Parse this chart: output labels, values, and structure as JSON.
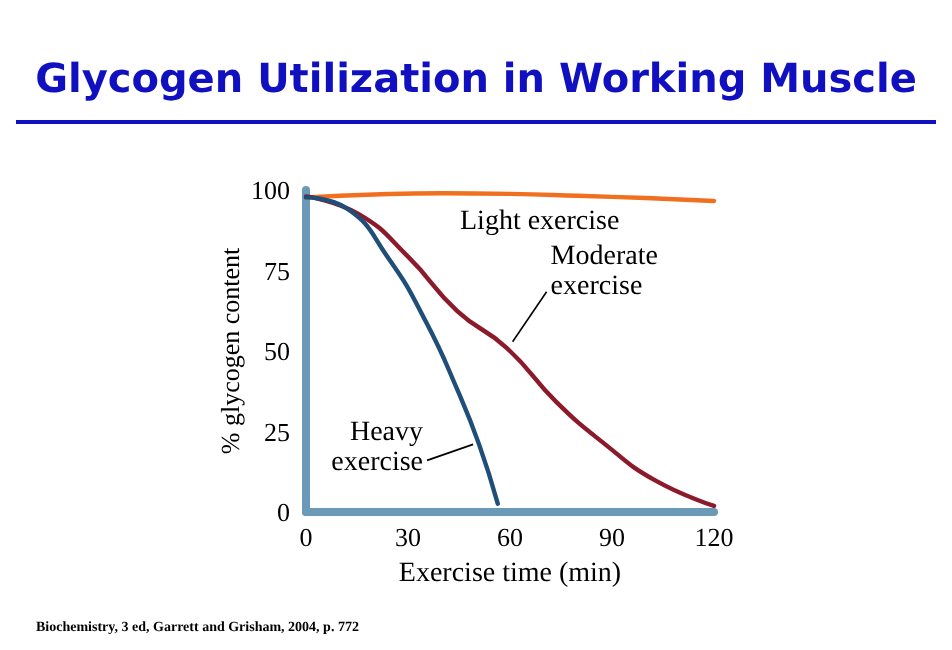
{
  "chart_data": {
    "type": "line",
    "title": "Glycogen Utilization in Working Muscle",
    "xlabel": "Exercise time (min)",
    "ylabel": "% glycogen content",
    "xlim": [
      0,
      120
    ],
    "xticks": [
      0,
      30,
      60,
      90,
      120
    ],
    "ylim": [
      0,
      100
    ],
    "yticks": [
      0,
      25,
      50,
      75,
      100
    ],
    "grid": false,
    "marker": "none",
    "line_style": "solid",
    "series": [
      {
        "color": "#f07020",
        "x": [
          0,
          20,
          40,
          60,
          80,
          100,
          120
        ],
        "values": [
          97.7,
          98.6,
          99,
          98.8,
          98.2,
          97.5,
          96.6
        ]
      },
      {
        "color": "#8b1a2b",
        "x": [
          0,
          15.5,
          30,
          44.5,
          59,
          73.6,
          88,
          102.7,
          120
        ],
        "values": [
          98,
          92.5,
          79.3,
          62.4,
          51,
          34.2,
          21,
          9.8,
          1.9
        ]
      },
      {
        "color": "#1f4e79",
        "x": [
          0,
          11.8,
          24.5,
          35.5,
          44.5,
          50.9,
          56.4
        ],
        "values": [
          97.7,
          94.4,
          78.4,
          58.6,
          38,
          21,
          2.6
        ]
      }
    ],
    "annotations": [
      {
        "text": "Light exercise",
        "x": 60,
        "y": 98.8
      },
      {
        "text": "Moderate\nexercise",
        "x": 59,
        "y": 51
      },
      {
        "text": "Heavy\nexercise",
        "x": 50.9,
        "y": 21
      },
      "Biochemistry, 3 ed, Garrett and Grisham, 2004, p. 772"
    ]
  }
}
